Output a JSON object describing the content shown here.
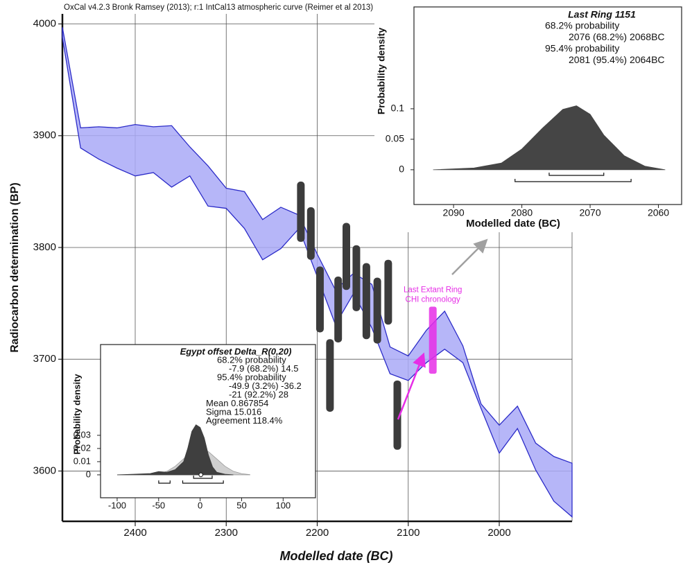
{
  "chart_data": [
    {
      "type": "calibration",
      "title": "OxCal v4.2.3 Bronk Ramsey (2013); r:1 IntCal13 atmospheric curve (Reimer et al 2013)",
      "x_label": "Modelled date (BC)",
      "y_label": "Radiocarbon determination (BP)",
      "xlim": [
        2480,
        1920
      ],
      "ylim": [
        3555,
        4009
      ],
      "xticks": [
        2400,
        2300,
        2200,
        2100,
        2000
      ],
      "yticks": [
        3600,
        3700,
        3800,
        3900,
        4000
      ],
      "grid": true,
      "band": {
        "color": "#a9a9f7",
        "edge_color": "#2b2bc8",
        "x": [
          2480,
          2460,
          2440,
          2420,
          2400,
          2380,
          2360,
          2340,
          2320,
          2300,
          2280,
          2260,
          2240,
          2220,
          2200,
          2180,
          2160,
          2140,
          2120,
          2100,
          2080,
          2060,
          2040,
          2020,
          2000,
          1980,
          1960,
          1940,
          1920
        ],
        "upper": [
          3997,
          3907,
          3908,
          3907,
          3910,
          3908,
          3909,
          3890,
          3873,
          3853,
          3850,
          3825,
          3836,
          3829,
          3794,
          3762,
          3777,
          3767,
          3711,
          3703,
          3726,
          3743,
          3712,
          3660,
          3641,
          3658,
          3625,
          3613,
          3607
        ],
        "lower": [
          3988,
          3889,
          3879,
          3871,
          3864,
          3867,
          3854,
          3864,
          3837,
          3835,
          3817,
          3789,
          3799,
          3817,
          3774,
          3731,
          3759,
          3728,
          3687,
          3681,
          3697,
          3709,
          3697,
          3656,
          3616,
          3638,
          3601,
          3573,
          3559
        ]
      },
      "dates": {
        "color": "#3c3c3c",
        "x": [
          2218,
          2207,
          2197,
          2186,
          2177,
          2168,
          2157,
          2146,
          2134,
          2122,
          2112
        ],
        "high": [
          3859,
          3836,
          3783,
          3718,
          3774,
          3822,
          3802,
          3786,
          3773,
          3789,
          3681
        ],
        "low": [
          3805,
          3789,
          3724,
          3653,
          3715,
          3762,
          3743,
          3718,
          3714,
          3731,
          3619
        ]
      },
      "annotation": {
        "text": [
          "Last Extant Ring",
          "CHI chronology"
        ],
        "color": "#e62ee6",
        "x": 2073,
        "high": 3747,
        "low": 3687
      }
    },
    {
      "type": "density",
      "title": "Last Ring 1151",
      "lines": [
        "68.2% probability",
        "2076 (68.2%) 2068BC",
        "95.4% probability",
        "2081 (95.4%) 2064BC"
      ],
      "x_label": "Modelled date (BC)",
      "y_label": "Probability density",
      "xlim": [
        2095.8,
        2056.6
      ],
      "ylim": [
        -0.057,
        0.267
      ],
      "xticks": [
        2090,
        2080,
        2070,
        2060
      ],
      "yticks": [
        0,
        0.05,
        0.1
      ],
      "series": [
        {
          "color": "#454545",
          "x": [
            2093,
            2087,
            2083,
            2080,
            2077,
            2074,
            2072,
            2070,
            2068,
            2065,
            2062,
            2059
          ],
          "values": [
            0,
            0.003,
            0.011,
            0.034,
            0.068,
            0.099,
            0.105,
            0.091,
            0.057,
            0.023,
            0.006,
            0
          ]
        }
      ],
      "ranges": [
        [
          [
            2076,
            2068
          ]
        ],
        [
          [
            2081,
            2064
          ]
        ]
      ]
    },
    {
      "type": "density",
      "title": "Egypt offset Delta_R(0,20)",
      "lines": [
        "68.2% probability",
        "-7.9 (68.2%) 14.5",
        "95.4% probability",
        "-49.9 (3.2%) -36.2",
        "-21 (92.2%) 28",
        "Mean 0.867854",
        "Sigma 15.016",
        "Agreement 118.4%"
      ],
      "y_label": "Probability density",
      "xlim": [
        -120,
        139
      ],
      "ylim": [
        -0.0174,
        0.0989
      ],
      "xticks": [
        -100,
        -50,
        0,
        50,
        100
      ],
      "yticks": [
        0,
        0.01,
        0.02,
        0.03
      ],
      "series": [
        {
          "color": "#cfcfcf",
          "x": [
            -60,
            -50,
            -40,
            -30,
            -20,
            -10,
            0,
            10,
            20,
            30,
            40,
            50,
            60
          ],
          "values": [
            0.0002,
            0.0009,
            0.0027,
            0.0065,
            0.0121,
            0.0176,
            0.0199,
            0.0176,
            0.0121,
            0.0065,
            0.0027,
            0.0009,
            0.0002
          ]
        },
        {
          "color": "#3f3f3f",
          "x": [
            -100,
            -80,
            -60,
            -50,
            -40,
            -30,
            -20,
            -15,
            -10,
            -5,
            0,
            5,
            10,
            15,
            20,
            30,
            40
          ],
          "values": [
            0,
            0.0005,
            0.001,
            0.0025,
            0.002,
            0.004,
            0.01,
            0.02,
            0.033,
            0.038,
            0.036,
            0.028,
            0.015,
            0.006,
            0.002,
            0.0005,
            0
          ]
        }
      ],
      "ranges": [
        [
          [
            -7.9,
            14.5
          ]
        ],
        [
          [
            -49.9,
            -36.2
          ],
          [
            -21,
            28
          ]
        ]
      ],
      "mean": 0.867854
    }
  ]
}
